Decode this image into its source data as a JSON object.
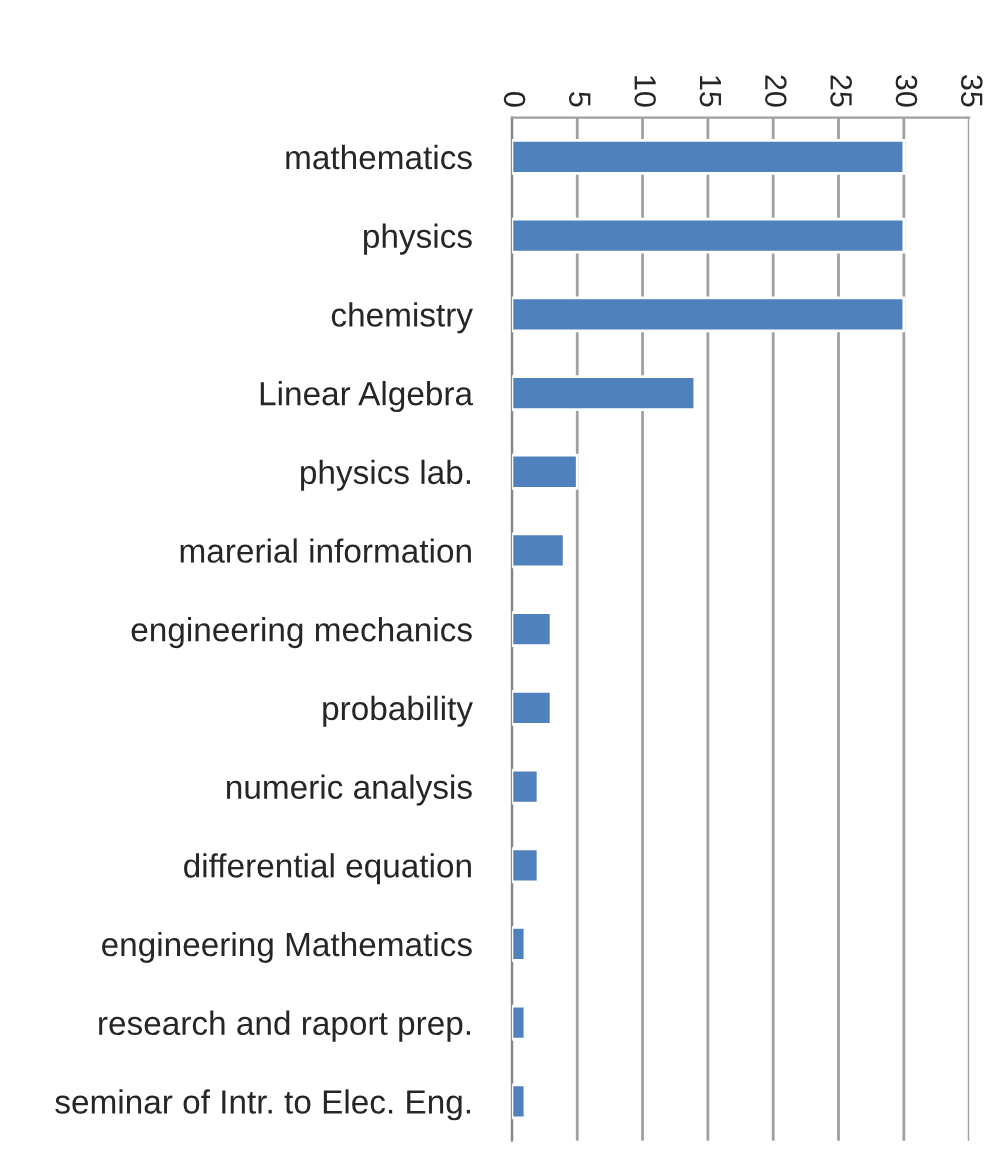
{
  "chart_data": {
    "type": "bar",
    "orientation": "horizontal",
    "categories": [
      "mathematics",
      "physics",
      "chemistry",
      "Linear Algebra",
      "physics lab.",
      "marerial information",
      "engineering mechanics",
      "probability",
      "numeric analysis",
      "differential equation",
      "engineering Mathematics",
      "research and raport prep.",
      "seminar of Intr. to Elec. Eng."
    ],
    "values": [
      30,
      30,
      30,
      14,
      5,
      4,
      3,
      3,
      2,
      2,
      1,
      1,
      1
    ],
    "color": "#4f81bd",
    "xlim": [
      0,
      35
    ],
    "xticks": [
      0,
      5,
      10,
      15,
      20,
      25,
      30,
      35
    ],
    "grid": "x"
  }
}
